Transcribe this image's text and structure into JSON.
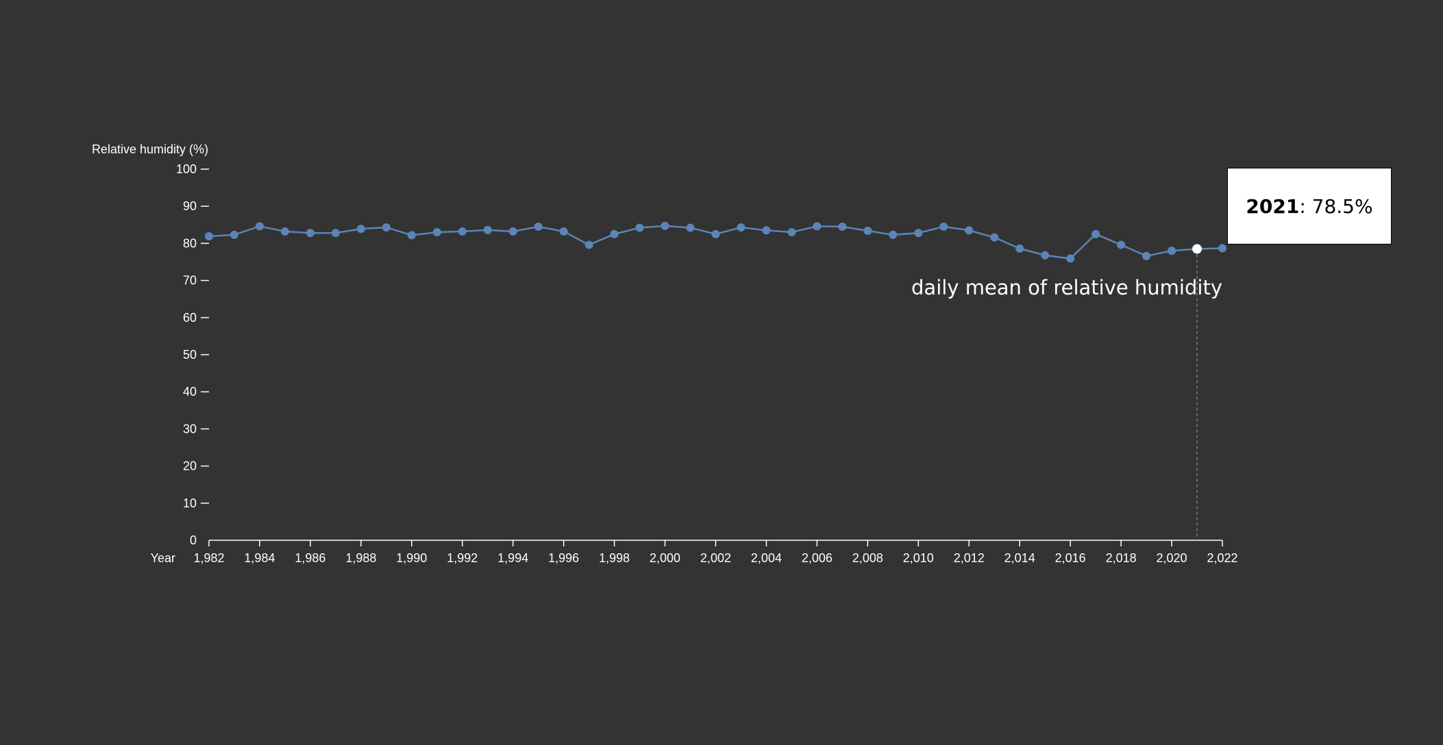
{
  "chart_data": {
    "type": "line",
    "xlabel": "Year",
    "ylabel": "Relative humidity (%)",
    "series_label": "daily mean of relative humidity",
    "xlim": [
      1982,
      2022
    ],
    "ylim": [
      0,
      100
    ],
    "x_ticks": [
      1982,
      1984,
      1986,
      1988,
      1990,
      1992,
      1994,
      1996,
      1998,
      2000,
      2002,
      2004,
      2006,
      2008,
      2010,
      2012,
      2014,
      2016,
      2018,
      2020,
      2022
    ],
    "x_tick_labels": [
      "1,982",
      "1,984",
      "1,986",
      "1,988",
      "1,990",
      "1,992",
      "1,994",
      "1,996",
      "1,998",
      "2,000",
      "2,002",
      "2,004",
      "2,006",
      "2,008",
      "2,010",
      "2,012",
      "2,014",
      "2,016",
      "2,018",
      "2,020",
      "2,022"
    ],
    "y_ticks": [
      0,
      10,
      20,
      30,
      40,
      50,
      60,
      70,
      80,
      90,
      100
    ],
    "y_tick_labels": [
      "0",
      "10",
      "20",
      "30",
      "40",
      "50",
      "60",
      "70",
      "80",
      "90",
      "100"
    ],
    "series": [
      {
        "color": "#5b85b8",
        "x": [
          1982,
          1983,
          1984,
          1985,
          1986,
          1987,
          1988,
          1989,
          1990,
          1991,
          1992,
          1993,
          1994,
          1995,
          1996,
          1997,
          1998,
          1999,
          2000,
          2001,
          2002,
          2003,
          2004,
          2005,
          2006,
          2007,
          2008,
          2009,
          2010,
          2011,
          2012,
          2013,
          2014,
          2015,
          2016,
          2017,
          2018,
          2019,
          2020,
          2021,
          2022
        ],
        "y": [
          81.9,
          82.3,
          84.6,
          83.2,
          82.8,
          82.8,
          83.9,
          84.3,
          82.2,
          83.0,
          83.2,
          83.6,
          83.2,
          84.5,
          83.2,
          79.6,
          82.5,
          84.2,
          84.7,
          84.2,
          82.5,
          84.3,
          83.5,
          83.0,
          84.6,
          84.5,
          83.4,
          82.3,
          82.8,
          84.5,
          83.5,
          81.6,
          78.6,
          76.8,
          75.9,
          82.5,
          79.6,
          76.6,
          78.0,
          78.5,
          78.7
        ]
      }
    ],
    "highlight": {
      "x": 2021,
      "y": 78.5,
      "year_text": "2021",
      "value_text": ": 78.5%"
    }
  }
}
